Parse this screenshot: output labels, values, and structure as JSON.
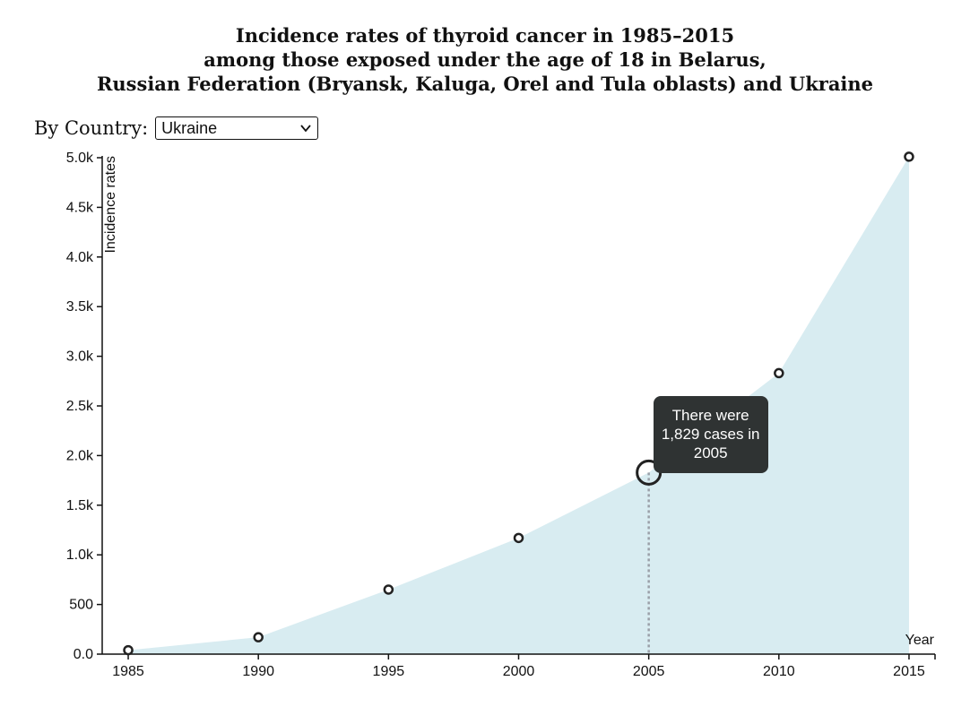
{
  "header": {
    "title_lines": [
      "Incidence rates of thyroid cancer in 1985–2015",
      "among those exposed under the age of 18 in Belarus,",
      "Russian Federation (Bryansk, Kaluga, Orel and Tula oblasts) and Ukraine"
    ]
  },
  "controls": {
    "country_label": "By Country:",
    "country_selected": "Ukraine"
  },
  "tooltip": {
    "text": "There were 1,829 cases in 2005",
    "highlighted_year": 2005
  },
  "colors": {
    "area_fill": "#d8ecf1",
    "point_stroke": "#222222",
    "tooltip_bg": "#2f3333",
    "guide_line": "#9aa0a8"
  },
  "chart_data": {
    "type": "area",
    "title": "Incidence rates of thyroid cancer in 1985–2015 among those exposed under the age of 18 in Belarus, Russian Federation (Bryansk, Kaluga, Orel and Tula oblasts) and Ukraine",
    "xlabel": "Year",
    "ylabel": "Incidence rates",
    "x": [
      1985,
      1990,
      1995,
      2000,
      2005,
      2010,
      2015
    ],
    "values": [
      40,
      170,
      650,
      1170,
      1829,
      2830,
      5010
    ],
    "xlim": [
      1984,
      2016
    ],
    "ylim": [
      0,
      5000
    ],
    "x_ticks": [
      "1985",
      "1990",
      "1995",
      "2000",
      "2005",
      "2010",
      "2015"
    ],
    "y_ticks": [
      "0.0",
      "500",
      "1.0k",
      "1.5k",
      "2.0k",
      "2.5k",
      "3.0k",
      "3.5k",
      "4.0k",
      "4.5k",
      "5.0k"
    ],
    "grid": false
  }
}
